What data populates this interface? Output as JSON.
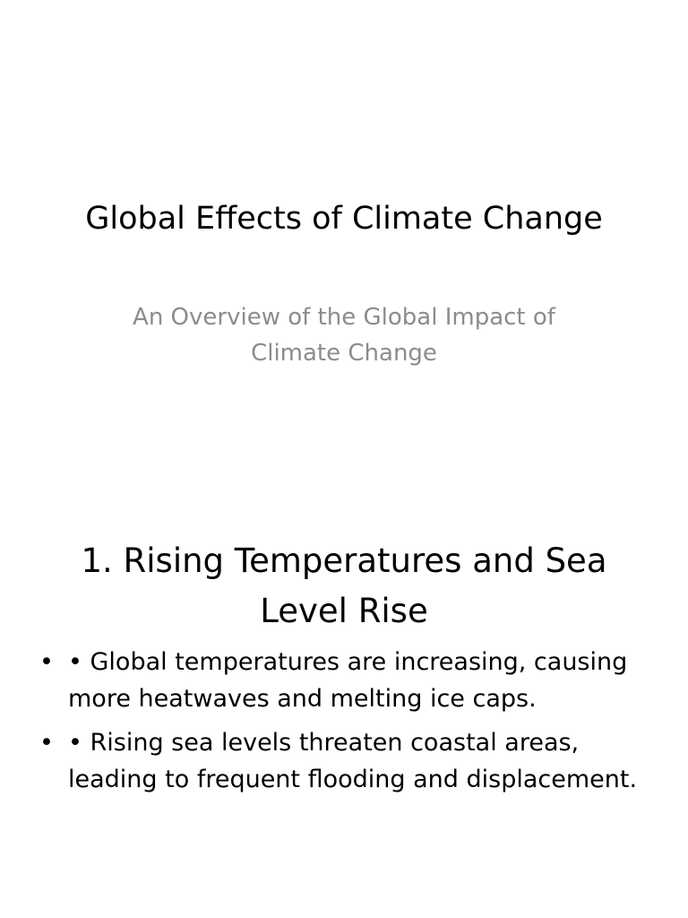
{
  "slides": [
    {
      "title": "Global Effects of Climate Change",
      "subtitle": "An Overview of the Global Impact of Climate Change"
    },
    {
      "title": "1. Rising Temperatures and Sea Level Rise",
      "bullet_marker": "•",
      "bullets": [
        "• Global temperatures are increasing, causing more heatwaves and melting ice caps.",
        "• Rising sea levels threaten coastal areas, leading to frequent flooding and displacement."
      ]
    }
  ],
  "colors": {
    "background": "#ffffff",
    "title_text": "#000000",
    "subtitle_text": "#8c8c8c"
  }
}
